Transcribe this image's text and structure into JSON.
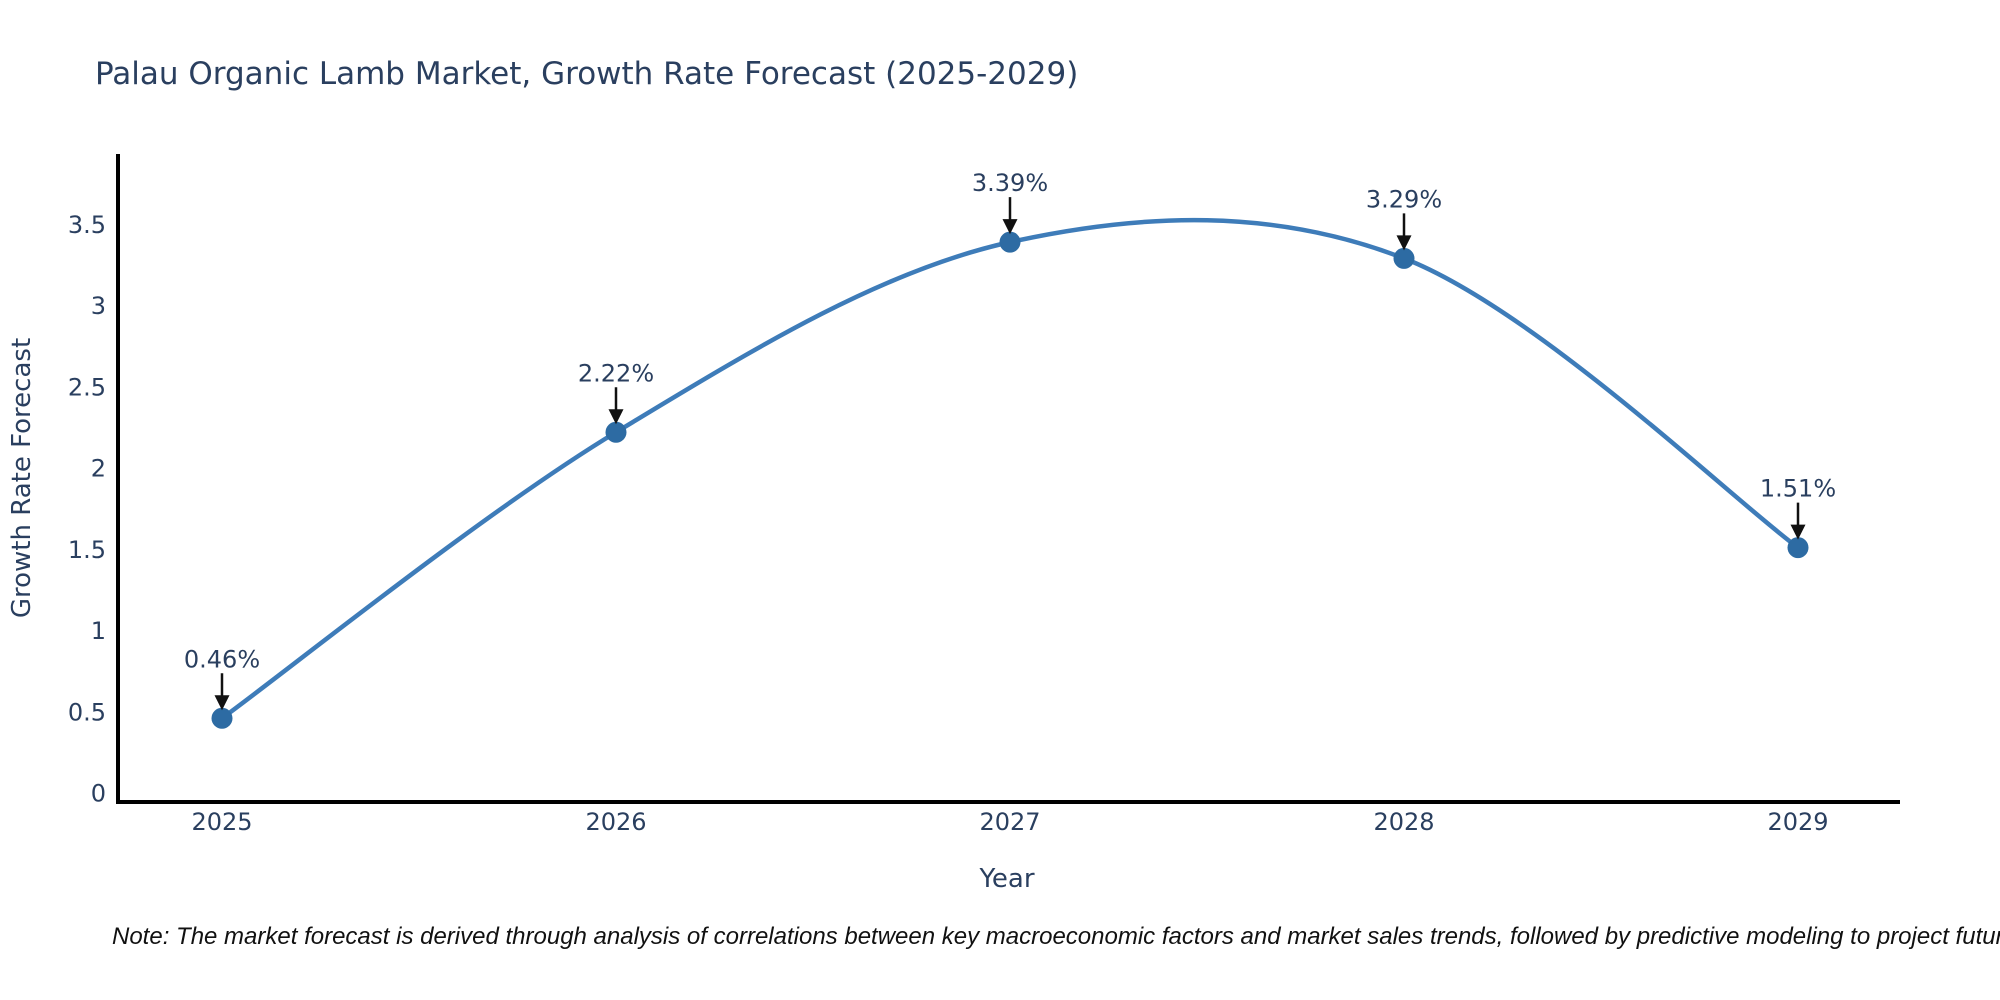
{
  "title": "Palau Organic Lamb Market, Growth Rate Forecast (2025-2029)",
  "note": "Note: The market forecast is derived through analysis of correlations between key macroeconomic factors and market sales trends, followed by predictive modeling to project future sales",
  "colors": {
    "line": "#3e7cb9",
    "marker": "#2d6ba3",
    "axis": "#000000",
    "text": "#2a3f5f",
    "arrow": "#111111",
    "background": "#ffffff"
  },
  "chart_data": {
    "type": "line",
    "title": "Palau Organic Lamb Market, Growth Rate Forecast (2025-2029)",
    "xlabel": "Year",
    "ylabel": "Growth Rate Forecast",
    "x": [
      2025,
      2026,
      2027,
      2028,
      2029
    ],
    "y": [
      0.46,
      2.22,
      3.39,
      3.29,
      1.51
    ],
    "point_labels": [
      "0.46%",
      "2.22%",
      "3.39%",
      "3.29%",
      "1.51%"
    ],
    "x_tick_labels": [
      "2025",
      "2026",
      "2027",
      "2028",
      "2029"
    ],
    "y_tick_labels": [
      "0",
      "0.5",
      "1",
      "1.5",
      "2",
      "2.5",
      "3",
      "3.5"
    ],
    "y_tick_values": [
      0,
      0.5,
      1,
      1.5,
      2,
      2.5,
      3,
      3.5
    ],
    "xlim": [
      2024.73,
      2029.26
    ],
    "ylim": [
      -0.06,
      3.93
    ],
    "grid": false,
    "legend": false,
    "line_shape": "spline",
    "annotation_style": "value label with black arrow pointing down to each point"
  }
}
